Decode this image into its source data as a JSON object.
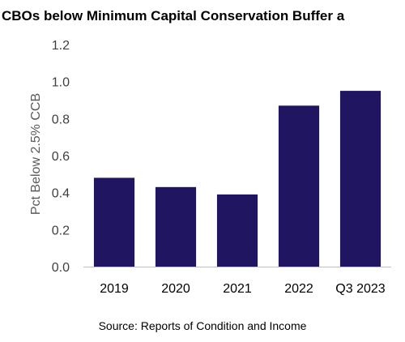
{
  "chart_data": {
    "type": "bar",
    "title": "CBOs below Minimum Capital Conservation Buffer a",
    "xlabel": "",
    "ylabel": "Pct Below 2.5% CCB",
    "categories": [
      "2019",
      "2020",
      "2021",
      "2022",
      "Q3 2023"
    ],
    "values": [
      0.48,
      0.43,
      0.39,
      0.87,
      0.95
    ],
    "ylim": [
      0,
      1.2
    ],
    "yticks": [
      "0.0",
      "0.2",
      "0.4",
      "0.6",
      "0.8",
      "1.0",
      "1.2"
    ],
    "grid": false,
    "bar_color": "#201560",
    "source": "Source: Reports of Condition and Income"
  }
}
